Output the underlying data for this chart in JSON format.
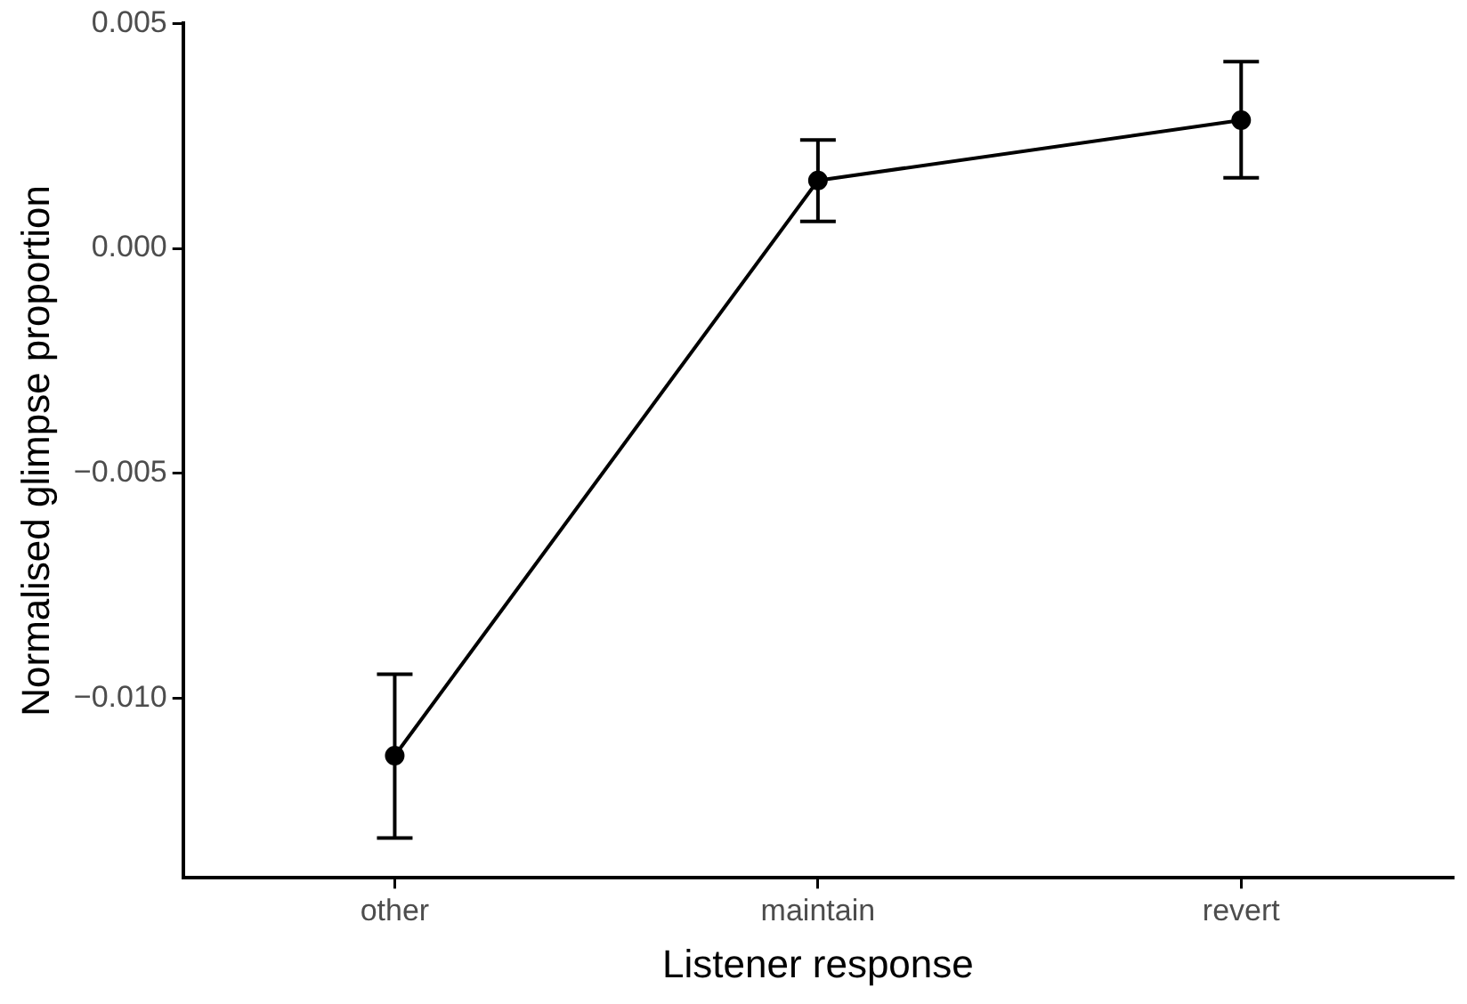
{
  "chart_data": {
    "type": "line",
    "xlabel": "Listener response",
    "ylabel": "Normalised glimpse proportion",
    "categories": [
      "other",
      "maintain",
      "revert"
    ],
    "series": [
      {
        "color": "#000000",
        "values": [
          -0.01128,
          0.00151,
          0.00285
        ],
        "errors": [
          [
            -0.01311,
            -0.00947
          ],
          [
            0.0006,
            0.00241
          ],
          [
            0.00157,
            0.00415
          ]
        ]
      }
    ],
    "ylim": [
      -0.014,
      0.005
    ],
    "yticks": [
      {
        "value": -0.01,
        "label": "−0.010"
      },
      {
        "value": -0.005,
        "label": "−0.005"
      },
      {
        "value": 0,
        "label": "0.000"
      },
      {
        "value": 0.005,
        "label": "0.005"
      }
    ],
    "grid": false,
    "legend": false,
    "marker": "circle",
    "line_style": "solid"
  }
}
